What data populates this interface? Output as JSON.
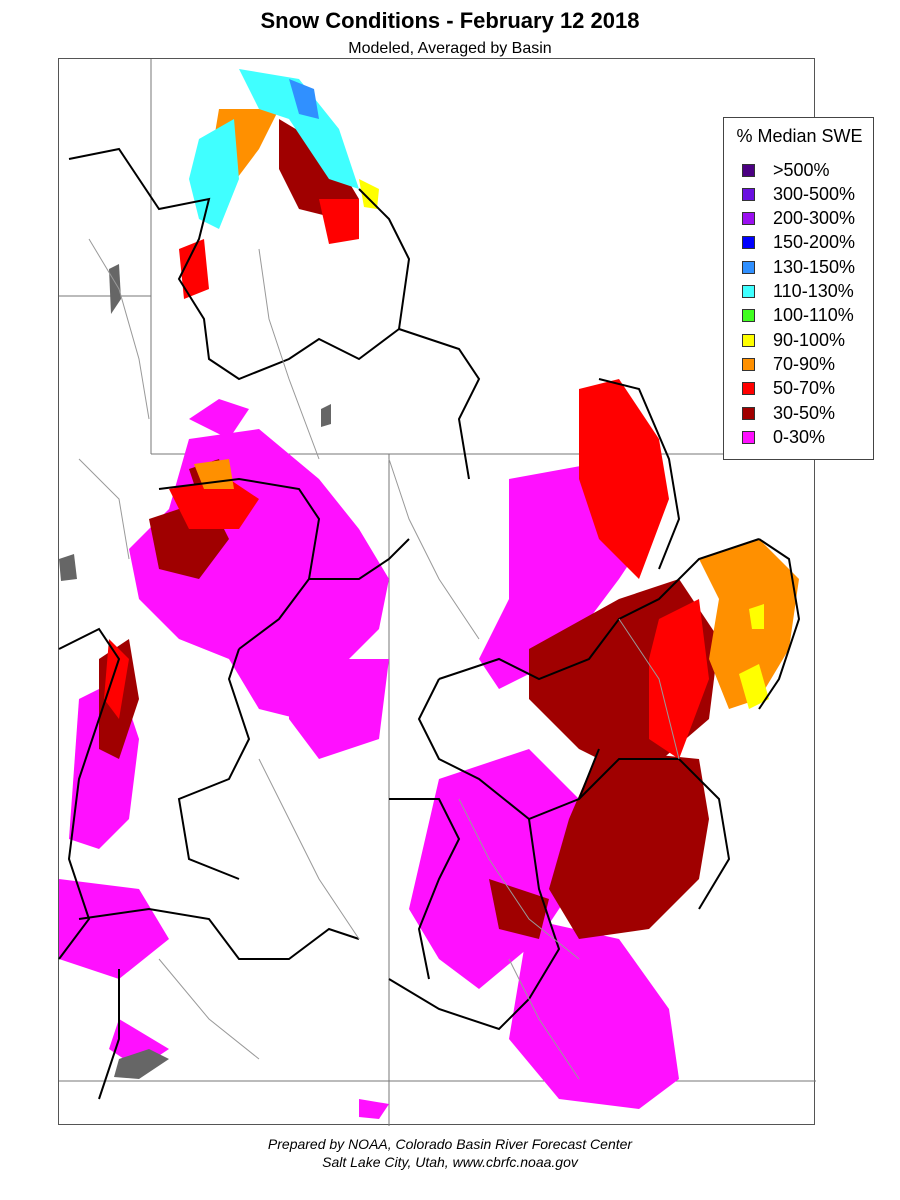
{
  "title": "Snow Conditions - February 12 2018",
  "subtitle": "Modeled, Averaged by Basin",
  "legend": {
    "title": "% Median SWE",
    "items": [
      {
        "label": ">500%",
        "color": "#4b0082"
      },
      {
        "label": "300-500%",
        "color": "#6a10e0"
      },
      {
        "label": "200-300%",
        "color": "#9a10f0"
      },
      {
        "label": "150-200%",
        "color": "#0000ff"
      },
      {
        "label": "130-150%",
        "color": "#3090ff"
      },
      {
        "label": "110-130%",
        "color": "#40ffff"
      },
      {
        "label": "100-110%",
        "color": "#40ff20"
      },
      {
        "label": "90-100%",
        "color": "#ffff00"
      },
      {
        "label": "70-90%",
        "color": "#ff9000"
      },
      {
        "label": "50-70%",
        "color": "#ff0000"
      },
      {
        "label": "30-50%",
        "color": "#a00000"
      },
      {
        "label": "0-30%",
        "color": "#ff10ff"
      }
    ]
  },
  "credits": {
    "line1": "Prepared by NOAA, Colorado Basin River Forecast Center",
    "line2": "Salt Lake City, Utah, www.cbrfc.noaa.gov"
  }
}
